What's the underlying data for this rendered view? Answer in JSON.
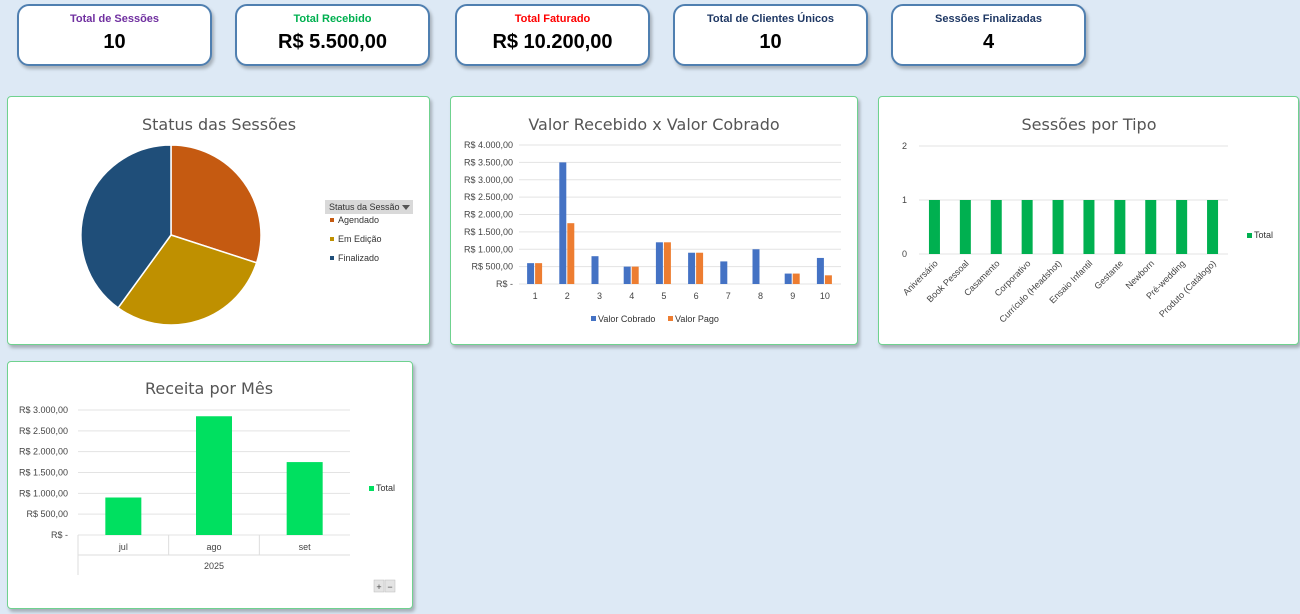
{
  "kpis": [
    {
      "label": "Total de Sessões",
      "value": "10",
      "color": "#7030a0"
    },
    {
      "label": "Total Recebido",
      "value": "R$ 5.500,00",
      "color": "#00b050"
    },
    {
      "label": "Total Faturado",
      "value": "R$ 10.200,00",
      "color": "#ff0000"
    },
    {
      "label": "Total de Clientes Únicos",
      "value": "10",
      "color": "#1f3864"
    },
    {
      "label": "Sessões Finalizadas",
      "value": "4",
      "color": "#1f3864"
    }
  ],
  "chart_data": [
    {
      "type": "pie",
      "title": "Status das Sessões",
      "legend_title": "Status da Sessão",
      "legend_position": "right",
      "slices": [
        {
          "label": "Agendado",
          "value": 3,
          "color": "#c55a11"
        },
        {
          "label": "Em Edição",
          "value": 3,
          "color": "#bf9000"
        },
        {
          "label": "Finalizado",
          "value": 4,
          "color": "#1f4e79"
        }
      ]
    },
    {
      "type": "bar",
      "title": "Valor Recebido x Valor Cobrado",
      "categories": [
        "1",
        "2",
        "3",
        "4",
        "5",
        "6",
        "7",
        "8",
        "9",
        "10"
      ],
      "series": [
        {
          "name": "Valor Cobrado",
          "color": "#4472c4",
          "values": [
            600,
            3500,
            800,
            500,
            1200,
            900,
            650,
            1000,
            300,
            750
          ]
        },
        {
          "name": "Valor Pago",
          "color": "#ed7d31",
          "values": [
            600,
            1750,
            0,
            500,
            1200,
            900,
            0,
            0,
            300,
            250
          ]
        }
      ],
      "ylim": [
        0,
        4000
      ],
      "yticks": [
        "R$ -",
        "R$ 500,00",
        "R$ 1.000,00",
        "R$ 1.500,00",
        "R$ 2.000,00",
        "R$ 2.500,00",
        "R$ 3.000,00",
        "R$ 3.500,00",
        "R$ 4.000,00"
      ],
      "legend_position": "bottom",
      "grid": true
    },
    {
      "type": "bar",
      "title": "Sessões por Tipo",
      "categories": [
        "Aniversário",
        "Book Pessoal",
        "Casamento",
        "Corporativo",
        "Currículo (Headshot)",
        "Ensaio Infantil",
        "Gestante",
        "Newborn",
        "Pré-wedding",
        "Produto (Catálogo)"
      ],
      "series": [
        {
          "name": "Total",
          "color": "#00b050",
          "values": [
            1,
            1,
            1,
            1,
            1,
            1,
            1,
            1,
            1,
            1
          ]
        }
      ],
      "ylim": [
        0,
        2
      ],
      "yticks": [
        "0",
        "1",
        "2"
      ],
      "legend_position": "right",
      "grid": true
    },
    {
      "type": "bar",
      "title": "Receita por Mês",
      "categories": [
        "jul",
        "ago",
        "set"
      ],
      "group_label": "2025",
      "series": [
        {
          "name": "Total",
          "color": "#00e060",
          "values": [
            900,
            2850,
            1750
          ]
        }
      ],
      "ylim": [
        0,
        3000
      ],
      "yticks": [
        "R$ -",
        "R$ 500,00",
        "R$ 1.000,00",
        "R$ 1.500,00",
        "R$ 2.000,00",
        "R$ 2.500,00",
        "R$ 3.000,00"
      ],
      "legend_position": "right",
      "grid": true,
      "buttons": [
        "+",
        "−"
      ]
    }
  ]
}
